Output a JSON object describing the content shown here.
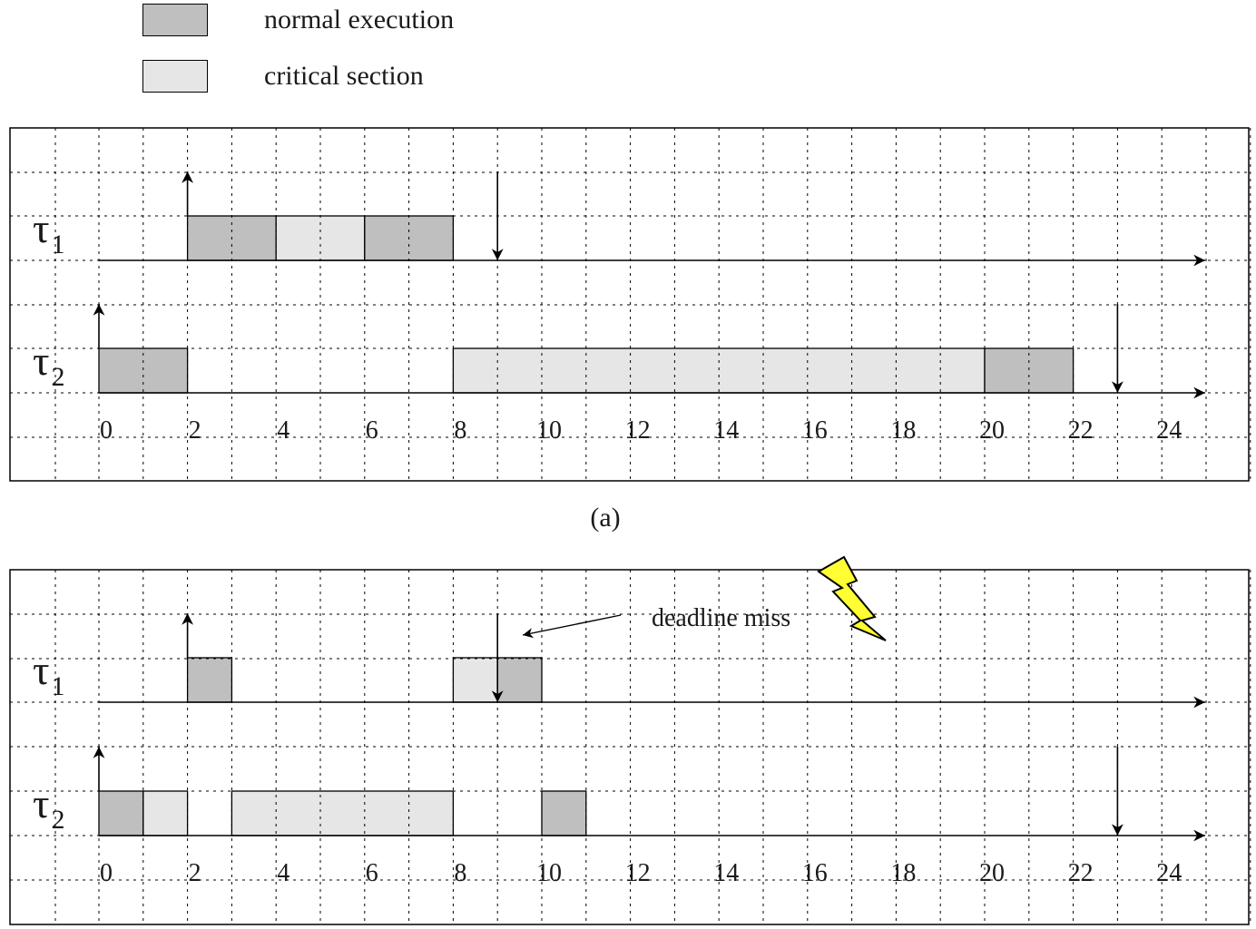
{
  "legend": {
    "normal": {
      "label": "normal execution",
      "color": "#bfbfbf"
    },
    "critical": {
      "label": "critical section",
      "color": "#e6e6e6"
    }
  },
  "panels": [
    {
      "caption": "(a)",
      "tasks": [
        {
          "symbol": "τ",
          "sub": "1",
          "release": 2,
          "deadline": 9,
          "blocks": [
            {
              "start": 2,
              "end": 4,
              "kind": "normal"
            },
            {
              "start": 4,
              "end": 6,
              "kind": "critical"
            },
            {
              "start": 6,
              "end": 8,
              "kind": "normal"
            }
          ]
        },
        {
          "symbol": "τ",
          "sub": "2",
          "release": 0,
          "deadline": 23,
          "blocks": [
            {
              "start": 0,
              "end": 2,
              "kind": "normal"
            },
            {
              "start": 8,
              "end": 20,
              "kind": "critical"
            },
            {
              "start": 20,
              "end": 22,
              "kind": "normal"
            }
          ]
        }
      ]
    },
    {
      "caption": "",
      "annotation": {
        "text": "deadline miss",
        "points_to": 10,
        "icon": "lightning-icon",
        "icon_color": "#ffff33"
      },
      "tasks": [
        {
          "symbol": "τ",
          "sub": "1",
          "release": 2,
          "deadline": 9,
          "blocks": [
            {
              "start": 2,
              "end": 3,
              "kind": "normal"
            },
            {
              "start": 8,
              "end": 9,
              "kind": "critical"
            },
            {
              "start": 9,
              "end": 10,
              "kind": "normal"
            }
          ]
        },
        {
          "symbol": "τ",
          "sub": "2",
          "release": 0,
          "deadline": 23,
          "blocks": [
            {
              "start": 0,
              "end": 1,
              "kind": "normal"
            },
            {
              "start": 1,
              "end": 2,
              "kind": "critical"
            },
            {
              "start": 3,
              "end": 8,
              "kind": "critical"
            },
            {
              "start": 10,
              "end": 11,
              "kind": "normal"
            }
          ]
        }
      ]
    }
  ],
  "axis": {
    "tick_labels": [
      "0",
      "2",
      "4",
      "6",
      "8",
      "10",
      "12",
      "14",
      "16",
      "18",
      "20",
      "22",
      "24"
    ],
    "min": 0,
    "max": 25
  }
}
